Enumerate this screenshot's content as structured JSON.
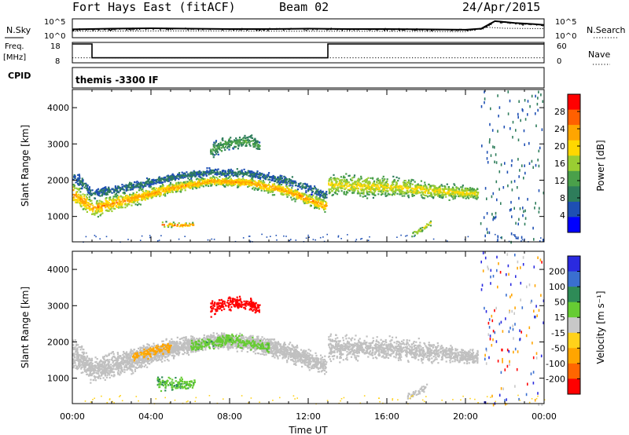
{
  "header": {
    "title": "Fort Hays East (fitACF)",
    "beam": "Beam 02",
    "date": "24/Apr/2015"
  },
  "colors": {
    "power_scale": [
      "#0000ff",
      "#1e4fb3",
      "#2e7d5b",
      "#4aa04a",
      "#9acd32",
      "#ffd700",
      "#ffa500",
      "#ff6000",
      "#ff0000"
    ],
    "velocity_scale": [
      "#2a2ae0",
      "#3a6fd0",
      "#2e8b57",
      "#66cc33",
      "#c8c8c8",
      "#ffd21a",
      "#ffa500",
      "#ff6600",
      "#ff0000"
    ],
    "ground_scatter": "#c0c0c0"
  },
  "chart_data": [
    {
      "type": "line",
      "panel": "noise",
      "left_label": "N.Sky",
      "right_label": "N.Search",
      "left_ticks": [
        "10^5",
        "10^0"
      ],
      "right_ticks": [
        "10^5",
        "10^0"
      ],
      "series": [
        {
          "name": "N.Sky",
          "x": [
            0,
            2,
            4,
            6,
            8,
            10,
            12,
            14,
            16,
            18,
            20,
            20.8,
            21.5,
            22.5,
            23.5,
            24
          ],
          "values": [
            2.2,
            2.4,
            2.5,
            2.4,
            2.3,
            2.3,
            2.4,
            2.3,
            2.3,
            2.2,
            2.1,
            2.4,
            4.4,
            3.9,
            3.6,
            3.4
          ]
        },
        {
          "name": "N.Search",
          "x": [
            0,
            4,
            8,
            12,
            16,
            20,
            21,
            22,
            24
          ],
          "values": [
            1.7,
            1.8,
            1.8,
            1.7,
            1.7,
            1.6,
            2.8,
            2.5,
            2.4
          ]
        }
      ],
      "ylim": [
        0,
        5
      ]
    },
    {
      "type": "line",
      "panel": "frequency",
      "left_label": "Freq.",
      "left_unit": "[MHz]",
      "right_label": "Nave",
      "left_ticks": [
        "18",
        "8"
      ],
      "right_ticks": [
        "60",
        "0"
      ],
      "series": [
        {
          "name": "Freq.",
          "x": [
            0,
            1,
            1,
            13,
            13,
            24
          ],
          "values": [
            18,
            18,
            10,
            10,
            18,
            18
          ]
        },
        {
          "name": "Nave",
          "x": [
            0,
            24
          ],
          "values": [
            10,
            10
          ]
        }
      ],
      "ylim": [
        8,
        18
      ]
    },
    {
      "type": "table",
      "panel": "cpid",
      "label": "CPID",
      "value": "themis -3300 IF"
    },
    {
      "type": "heatmap",
      "panel": "power",
      "ylabel": "Slant Range [km]",
      "xlim": [
        0,
        24
      ],
      "ylim": [
        300,
        4500
      ],
      "yticks": [
        "1000",
        "2000",
        "3000",
        "4000"
      ],
      "colorbar_label": "Power [dB]",
      "colorbar_ticks": [
        "28",
        "24",
        "20",
        "16",
        "12",
        "8",
        "4"
      ],
      "bands": [
        {
          "x": [
            0,
            1,
            3,
            5,
            7,
            9,
            11,
            12.9
          ],
          "range_center": [
            1650,
            1250,
            1500,
            1800,
            2000,
            1950,
            1700,
            1300
          ],
          "width": [
            450,
            350,
            300,
            220,
            180,
            200,
            250,
            250
          ],
          "intensity": 0.7
        },
        {
          "x": [
            13,
            15,
            17,
            19,
            20.6
          ],
          "range_center": [
            1900,
            1850,
            1800,
            1700,
            1650
          ],
          "width": [
            450,
            420,
            400,
            300,
            250
          ],
          "intensity": 0.55
        },
        {
          "x": [
            4.5,
            5.5,
            6.2
          ],
          "range_center": [
            800,
            780,
            800
          ],
          "width": [
            100,
            90,
            90
          ],
          "intensity": 0.75
        },
        {
          "x": [
            7,
            8,
            9,
            9.5
          ],
          "range_center": [
            2850,
            3050,
            3100,
            2950
          ],
          "width": [
            300,
            250,
            300,
            200
          ],
          "intensity": 0.3
        },
        {
          "x": [
            17.2,
            17.7,
            18.2
          ],
          "range_center": [
            500,
            650,
            850
          ],
          "width": [
            120,
            120,
            120
          ],
          "intensity": 0.5
        },
        {
          "x": [
            0,
            1,
            3,
            5,
            7,
            9,
            11,
            12.9
          ],
          "range_center": [
            2150,
            1650,
            1850,
            2100,
            2250,
            2200,
            2000,
            1600
          ],
          "width": [
            250,
            200,
            180,
            150,
            150,
            150,
            180,
            180
          ],
          "intensity": 0.15
        }
      ]
    },
    {
      "type": "heatmap",
      "panel": "velocity",
      "ylabel": "Slant Range [km]",
      "xlabel": "Time UT",
      "xlim": [
        0,
        24
      ],
      "ylim": [
        300,
        4500
      ],
      "xticks": [
        "00:00",
        "04:00",
        "08:00",
        "12:00",
        "16:00",
        "20:00",
        "00:00"
      ],
      "yticks": [
        "1000",
        "2000",
        "3000",
        "4000"
      ],
      "colorbar_label": "Velocity [m s⁻¹]",
      "colorbar_ticks": [
        "200",
        "100",
        "50",
        "15",
        "-15",
        "-50",
        "-100",
        "-200"
      ],
      "bands": [
        {
          "x": [
            0,
            1,
            3,
            5,
            7,
            9,
            11,
            12.9
          ],
          "range_center": [
            1700,
            1250,
            1500,
            1850,
            2050,
            2000,
            1750,
            1350
          ],
          "width": [
            700,
            450,
            500,
            400,
            300,
            350,
            400,
            350
          ],
          "velocity": 0
        },
        {
          "x": [
            3,
            4,
            5
          ],
          "range_center": [
            1600,
            1750,
            1900
          ],
          "width": [
            200,
            250,
            200
          ],
          "velocity": -40
        },
        {
          "x": [
            6,
            8,
            10
          ],
          "range_center": [
            1900,
            2100,
            1850
          ],
          "width": [
            250,
            250,
            250
          ],
          "velocity": 25
        },
        {
          "x": [
            13,
            15,
            17,
            19,
            20.6
          ],
          "range_center": [
            1850,
            1850,
            1800,
            1700,
            1600
          ],
          "width": [
            500,
            450,
            450,
            350,
            300
          ],
          "velocity": 0
        },
        {
          "x": [
            4.3,
            5.3,
            6.2
          ],
          "range_center": [
            880,
            860,
            880
          ],
          "width": [
            250,
            250,
            220
          ],
          "velocity": 30
        },
        {
          "x": [
            7,
            8,
            9,
            9.5
          ],
          "range_center": [
            2950,
            3100,
            3050,
            2950
          ],
          "width": [
            300,
            300,
            250,
            200
          ],
          "velocity": -180
        },
        {
          "x": [
            17,
            17.6,
            18
          ],
          "range_center": [
            500,
            650,
            800
          ],
          "width": [
            140,
            140,
            140
          ],
          "velocity": 0
        }
      ]
    }
  ]
}
